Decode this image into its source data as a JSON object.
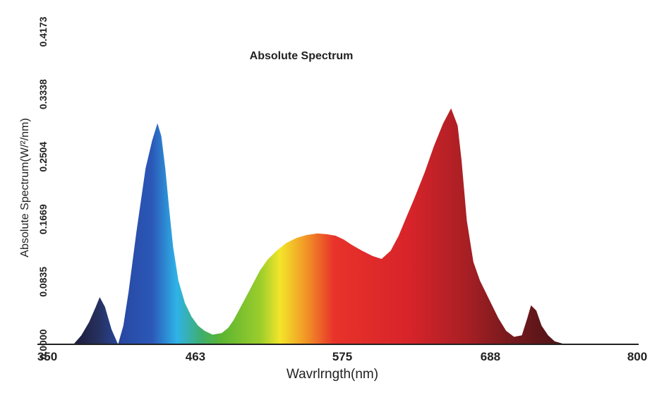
{
  "chart_data": {
    "type": "area",
    "title": "Absolute Spectrum",
    "xlabel": "Wavrlrngth(nm)",
    "ylabel": "Absolute Spectrum(W/²/nm)",
    "xlim": [
      350,
      800
    ],
    "ylim": [
      0,
      0.4173
    ],
    "x_ticks": [
      "350",
      "463",
      "575",
      "688",
      "800"
    ],
    "y_ticks": [
      "0.0000",
      "0.0835",
      "0.1669",
      "0.2504",
      "0.3338",
      "0.4173"
    ],
    "grid": false,
    "legend": "none",
    "series": [
      {
        "x": [
          370,
          376,
          382,
          387,
          390,
          394,
          399,
          404,
          408,
          412,
          418,
          425,
          430,
          434,
          437,
          440,
          443,
          446,
          450,
          455,
          460,
          465,
          470,
          476,
          483,
          488,
          492,
          496,
          500,
          506,
          512,
          518,
          525,
          532,
          540,
          548,
          556,
          563,
          570,
          576,
          582,
          590,
          598,
          605,
          612,
          618,
          624,
          630,
          638,
          645,
          652,
          658,
          663,
          666,
          670,
          675,
          680,
          687,
          694,
          700,
          706,
          712,
          716,
          719,
          723,
          727,
          732,
          737,
          745
        ],
        "y": [
          0.0,
          0.012,
          0.03,
          0.05,
          0.063,
          0.05,
          0.02,
          0.0,
          0.025,
          0.07,
          0.15,
          0.235,
          0.272,
          0.295,
          0.278,
          0.235,
          0.18,
          0.13,
          0.085,
          0.055,
          0.037,
          0.025,
          0.018,
          0.013,
          0.015,
          0.022,
          0.032,
          0.045,
          0.058,
          0.078,
          0.098,
          0.113,
          0.125,
          0.135,
          0.142,
          0.146,
          0.148,
          0.147,
          0.145,
          0.14,
          0.133,
          0.125,
          0.118,
          0.114,
          0.125,
          0.145,
          0.17,
          0.195,
          0.23,
          0.265,
          0.295,
          0.315,
          0.292,
          0.245,
          0.165,
          0.11,
          0.085,
          0.06,
          0.035,
          0.018,
          0.01,
          0.012,
          0.034,
          0.052,
          0.045,
          0.025,
          0.012,
          0.004,
          0.0
        ]
      }
    ]
  }
}
